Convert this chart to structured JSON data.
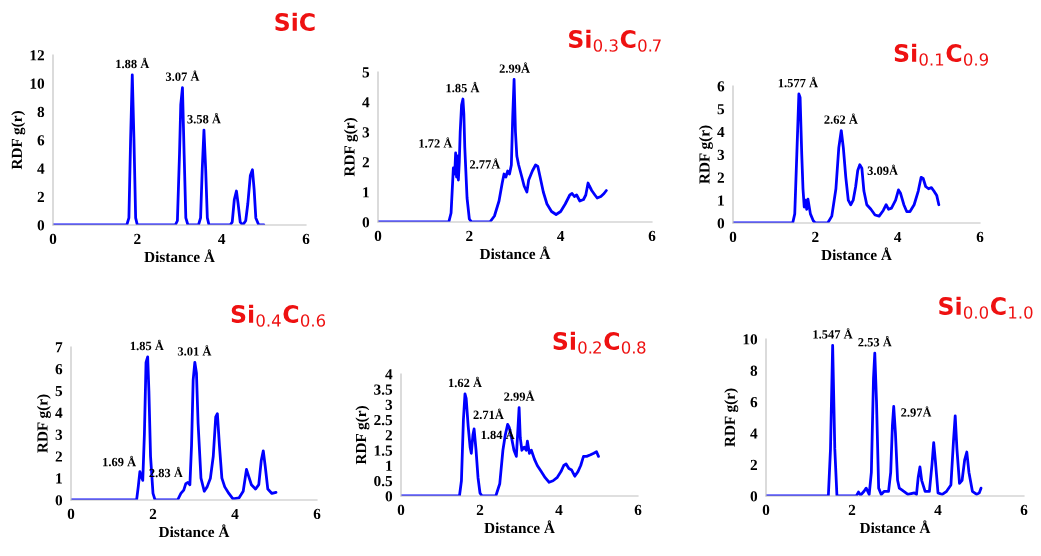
{
  "chart_data": [
    {
      "type": "line",
      "title": "SiC",
      "xlabel": "Distance Å",
      "ylabel": "RDF g(r)",
      "xlim": [
        0,
        6
      ],
      "xticks": [
        0,
        2,
        4,
        6
      ],
      "ylim": [
        0,
        12
      ],
      "yticks": [
        0,
        2,
        4,
        6,
        8,
        10,
        12
      ],
      "grid": false,
      "legend": false,
      "series": [
        {
          "color": "#0000ff",
          "x": [
            0,
            1.75,
            1.8,
            1.84,
            1.88,
            1.92,
            1.96,
            2.0,
            2.9,
            2.95,
            3.0,
            3.03,
            3.07,
            3.11,
            3.15,
            3.2,
            3.45,
            3.5,
            3.54,
            3.58,
            3.62,
            3.66,
            3.7,
            4.2,
            4.25,
            4.3,
            4.35,
            4.39,
            4.44,
            4.5,
            4.57,
            4.62,
            4.68,
            4.73,
            4.77,
            4.81,
            4.88,
            5.0
          ],
          "values": [
            0,
            0,
            0.5,
            6,
            10.6,
            6,
            0.5,
            0,
            0,
            0.3,
            5,
            8.5,
            9.7,
            5,
            0.5,
            0,
            0,
            0.5,
            4,
            6.7,
            4,
            0.5,
            0,
            0,
            0.2,
            1.8,
            2.4,
            1.5,
            0.2,
            0,
            0.3,
            1.5,
            3.5,
            3.9,
            2.5,
            0.5,
            0,
            0
          ]
        }
      ],
      "annotations": [
        {
          "text": "1.88 Å",
          "x": 1.88,
          "y": 10.6
        },
        {
          "text": "3.07 Å",
          "x": 3.07,
          "y": 9.7
        },
        {
          "text": "3.58 Å",
          "x": 3.58,
          "y": 6.7
        }
      ]
    },
    {
      "type": "line",
      "title": "Si$_{0.3}$C$_{0.7}$",
      "xlabel": "Distance Å",
      "ylabel": "RDF g(r)",
      "xlim": [
        0,
        6
      ],
      "xticks": [
        0,
        2,
        4,
        6
      ],
      "ylim": [
        0,
        5
      ],
      "yticks": [
        0,
        1,
        2,
        3,
        4,
        5
      ],
      "grid": false,
      "legend": false,
      "series": [
        {
          "color": "#0000ff",
          "x": [
            0,
            1.55,
            1.6,
            1.65,
            1.68,
            1.7,
            1.72,
            1.74,
            1.76,
            1.78,
            1.8,
            1.83,
            1.86,
            1.88,
            1.9,
            1.95,
            2.0,
            2.05,
            2.45,
            2.55,
            2.65,
            2.72,
            2.76,
            2.8,
            2.84,
            2.88,
            2.92,
            2.95,
            2.98,
            3.01,
            3.04,
            3.08,
            3.15,
            3.2,
            3.26,
            3.3,
            3.38,
            3.45,
            3.5,
            3.55,
            3.62,
            3.7,
            3.8,
            3.9,
            4.0,
            4.1,
            4.2,
            4.25,
            4.3,
            4.35,
            4.42,
            4.5,
            4.55,
            4.6,
            4.63,
            4.68,
            4.75,
            4.8,
            4.88,
            4.95,
            5.0
          ],
          "values": [
            0,
            0,
            0.3,
            1.8,
            1.6,
            2.3,
            1.5,
            2.2,
            1.4,
            2.0,
            3.0,
            3.9,
            4.1,
            3.6,
            2.5,
            0.8,
            0.1,
            0,
            0,
            0.2,
            0.7,
            1.3,
            1.6,
            1.5,
            1.7,
            1.6,
            1.9,
            3.5,
            4.75,
            3.0,
            2.2,
            1.9,
            1.5,
            1.2,
            1.0,
            1.4,
            1.7,
            1.9,
            1.85,
            1.5,
            1.0,
            0.6,
            0.35,
            0.25,
            0.35,
            0.6,
            0.9,
            0.95,
            0.85,
            0.9,
            0.7,
            0.75,
            0.9,
            1.3,
            1.2,
            1.05,
            0.9,
            0.8,
            0.85,
            0.95,
            1.05
          ]
        }
      ],
      "annotations": [
        {
          "text": "1.72 Å",
          "x": 1.72,
          "y": 2.3
        },
        {
          "text": "1.85 Å",
          "x": 1.85,
          "y": 4.1
        },
        {
          "text": "2.77Å",
          "x": 2.77,
          "y": 1.6
        },
        {
          "text": "2.99Å",
          "x": 2.99,
          "y": 4.75
        }
      ]
    },
    {
      "type": "line",
      "title": "Si$_{0.1}$C$_{0.9}$",
      "xlabel": "Distance Å",
      "ylabel": "RDF g(r)",
      "xlim": [
        0,
        6
      ],
      "xticks": [
        0,
        2,
        4,
        6
      ],
      "ylim": [
        0,
        6
      ],
      "yticks": [
        0,
        1,
        2,
        3,
        4,
        5,
        6
      ],
      "grid": false,
      "legend": false,
      "series": [
        {
          "color": "#0000ff",
          "x": [
            0,
            1.45,
            1.5,
            1.55,
            1.6,
            1.63,
            1.67,
            1.7,
            1.73,
            1.76,
            1.79,
            1.82,
            1.88,
            1.95,
            2.0,
            2.3,
            2.4,
            2.5,
            2.57,
            2.63,
            2.68,
            2.74,
            2.8,
            2.86,
            2.92,
            2.98,
            3.03,
            3.08,
            3.13,
            3.18,
            3.25,
            3.35,
            3.45,
            3.55,
            3.65,
            3.72,
            3.78,
            3.85,
            3.95,
            4.02,
            4.07,
            4.15,
            4.22,
            4.3,
            4.4,
            4.5,
            4.57,
            4.62,
            4.68,
            4.75,
            4.82,
            4.88,
            4.95,
            5.0
          ],
          "values": [
            0,
            0,
            0.4,
            3,
            5.65,
            5.5,
            3,
            1.5,
            0.7,
            1.0,
            0.6,
            1.05,
            0.4,
            0.1,
            0,
            0,
            0.3,
            1.5,
            3.3,
            4.05,
            3.3,
            2.0,
            1.0,
            0.8,
            1.0,
            1.6,
            2.3,
            2.55,
            2.4,
            1.4,
            0.8,
            0.6,
            0.35,
            0.3,
            0.55,
            0.8,
            0.6,
            0.65,
            1.0,
            1.45,
            1.3,
            0.8,
            0.5,
            0.5,
            0.8,
            1.4,
            2.0,
            1.95,
            1.6,
            1.5,
            1.55,
            1.4,
            1.2,
            0.8
          ]
        }
      ],
      "annotations": [
        {
          "text": "1.577 Å",
          "x": 1.577,
          "y": 5.65
        },
        {
          "text": "2.62 Å",
          "x": 2.62,
          "y": 4.05
        },
        {
          "text": "3.09Å",
          "x": 3.09,
          "y": 2.55
        }
      ]
    },
    {
      "type": "line",
      "title": "Si$_{0.4}$C$_{0.6}$",
      "xlabel": "Distance Å",
      "ylabel": "RDF g(r)",
      "xlim": [
        0,
        6
      ],
      "xticks": [
        0,
        2,
        4,
        6
      ],
      "ylim": [
        0,
        7
      ],
      "yticks": [
        0,
        1,
        2,
        3,
        4,
        5,
        6,
        7
      ],
      "grid": false,
      "legend": false,
      "series": [
        {
          "color": "#0000ff",
          "x": [
            0,
            1.6,
            1.64,
            1.68,
            1.71,
            1.75,
            1.79,
            1.83,
            1.87,
            1.9,
            1.94,
            2.0,
            2.05,
            2.6,
            2.68,
            2.75,
            2.8,
            2.85,
            2.9,
            2.94,
            2.98,
            3.02,
            3.06,
            3.1,
            3.17,
            3.25,
            3.32,
            3.4,
            3.47,
            3.53,
            3.57,
            3.62,
            3.68,
            3.75,
            3.85,
            3.95,
            4.1,
            4.2,
            4.28,
            4.33,
            4.4,
            4.5,
            4.58,
            4.64,
            4.69,
            4.74,
            4.8,
            4.9,
            5.0
          ],
          "values": [
            0,
            0,
            0.6,
            1.3,
            1.1,
            0.9,
            3.0,
            6.3,
            6.55,
            5.0,
            2.0,
            0.3,
            0,
            0,
            0.3,
            0.45,
            0.75,
            0.8,
            0.7,
            2.5,
            5.5,
            6.3,
            5.8,
            3.5,
            1.0,
            0.4,
            0.6,
            1.0,
            2.0,
            3.8,
            3.95,
            2.5,
            1.0,
            0.6,
            0.3,
            0.05,
            0.1,
            0.4,
            1.4,
            1.1,
            0.7,
            0.5,
            0.7,
            1.8,
            2.25,
            1.5,
            0.5,
            0.3,
            0.35
          ]
        }
      ],
      "annotations": [
        {
          "text": "1.69 Å",
          "x": 1.69,
          "y": 1.3
        },
        {
          "text": "1.85 Å",
          "x": 1.85,
          "y": 6.55
        },
        {
          "text": "2.83 Å",
          "x": 2.83,
          "y": 0.8
        },
        {
          "text": "3.01 Å",
          "x": 3.01,
          "y": 6.3
        }
      ]
    },
    {
      "type": "line",
      "title": "Si$_{0.2}$C$_{0.8}$",
      "xlabel": "Distance Å",
      "ylabel": "RDF g(r)",
      "xlim": [
        0,
        6
      ],
      "xticks": [
        0,
        2,
        4,
        6
      ],
      "ylim": [
        0,
        4
      ],
      "yticks": [
        0,
        0.5,
        1,
        1.5,
        2,
        2.5,
        3,
        3.5,
        4
      ],
      "grid": false,
      "legend": false,
      "series": [
        {
          "color": "#0000ff",
          "x": [
            0,
            1.48,
            1.53,
            1.58,
            1.62,
            1.65,
            1.7,
            1.75,
            1.78,
            1.82,
            1.85,
            1.9,
            1.95,
            2.0,
            2.05,
            2.4,
            2.5,
            2.58,
            2.64,
            2.7,
            2.74,
            2.8,
            2.86,
            2.92,
            2.96,
            2.99,
            3.02,
            3.06,
            3.12,
            3.17,
            3.2,
            3.25,
            3.3,
            3.38,
            3.45,
            3.55,
            3.65,
            3.75,
            3.85,
            3.95,
            4.05,
            4.12,
            4.18,
            4.25,
            4.32,
            4.4,
            4.48,
            4.55,
            4.62,
            4.7,
            4.8,
            4.88,
            4.95,
            5.0
          ],
          "values": [
            0,
            0,
            0.5,
            2.5,
            3.35,
            3.2,
            2.3,
            1.6,
            1.4,
            2.0,
            2.2,
            1.5,
            0.6,
            0.1,
            0,
            0,
            0.4,
            1.5,
            2.0,
            2.35,
            2.25,
            1.9,
            1.5,
            1.3,
            2.2,
            2.9,
            1.9,
            1.5,
            1.6,
            1.5,
            1.8,
            1.4,
            1.5,
            1.2,
            1.0,
            0.8,
            0.6,
            0.45,
            0.5,
            0.6,
            0.8,
            1.0,
            1.05,
            0.9,
            0.85,
            0.65,
            0.8,
            1.0,
            1.3,
            1.3,
            1.35,
            1.4,
            1.45,
            1.3
          ]
        }
      ],
      "annotations": [
        {
          "text": "1.62 Å",
          "x": 1.62,
          "y": 3.35
        },
        {
          "text": "1.84 Å",
          "x": 1.84,
          "y": 2.2
        },
        {
          "text": "2.99Å",
          "x": 2.99,
          "y": 2.9
        },
        {
          "text": "2.71Å",
          "x": 2.71,
          "y": 2.35
        }
      ]
    },
    {
      "type": "line",
      "title": "Si$_{0.0}$C$_{1.0}$",
      "xlabel": "Distance Å",
      "ylabel": "RDF g(r)",
      "xlim": [
        0,
        6
      ],
      "xticks": [
        0,
        2,
        4,
        6
      ],
      "ylim": [
        0,
        10
      ],
      "yticks": [
        0,
        2,
        4,
        6,
        8,
        10
      ],
      "grid": false,
      "legend": false,
      "series": [
        {
          "color": "#0000ff",
          "x": [
            0,
            1.45,
            1.5,
            1.55,
            1.6,
            1.65,
            2.1,
            2.15,
            2.2,
            2.28,
            2.33,
            2.4,
            2.45,
            2.5,
            2.53,
            2.57,
            2.62,
            2.68,
            2.75,
            2.85,
            2.9,
            2.94,
            2.97,
            3.01,
            3.06,
            3.1,
            3.15,
            3.3,
            3.45,
            3.5,
            3.54,
            3.58,
            3.62,
            3.7,
            3.8,
            3.86,
            3.9,
            3.94,
            4.0,
            4.1,
            4.2,
            4.3,
            4.36,
            4.4,
            4.44,
            4.5,
            4.56,
            4.62,
            4.67,
            4.72,
            4.8,
            4.9,
            4.96,
            5.0
          ],
          "values": [
            0,
            0,
            3,
            9.6,
            3,
            0,
            0,
            0.25,
            0.05,
            0.3,
            0.5,
            0.1,
            1.5,
            7.5,
            9.1,
            6,
            0.5,
            0.1,
            0.3,
            0.3,
            1.5,
            4.5,
            5.7,
            4,
            1,
            0.5,
            0.4,
            0.1,
            0.2,
            0.1,
            1.2,
            1.85,
            1.0,
            0.3,
            0.3,
            2.0,
            3.4,
            2.2,
            0.2,
            0.1,
            0.3,
            0.7,
            3.5,
            5.1,
            3.0,
            0.8,
            1.0,
            2.3,
            2.8,
            1.5,
            0.3,
            0.1,
            0.2,
            0.5
          ]
        }
      ],
      "annotations": [
        {
          "text": "1.547 Å",
          "x": 1.547,
          "y": 9.6
        },
        {
          "text": "2.53 Å",
          "x": 2.53,
          "y": 9.1
        },
        {
          "text": "2.97Å",
          "x": 2.97,
          "y": 5.7
        }
      ]
    }
  ]
}
